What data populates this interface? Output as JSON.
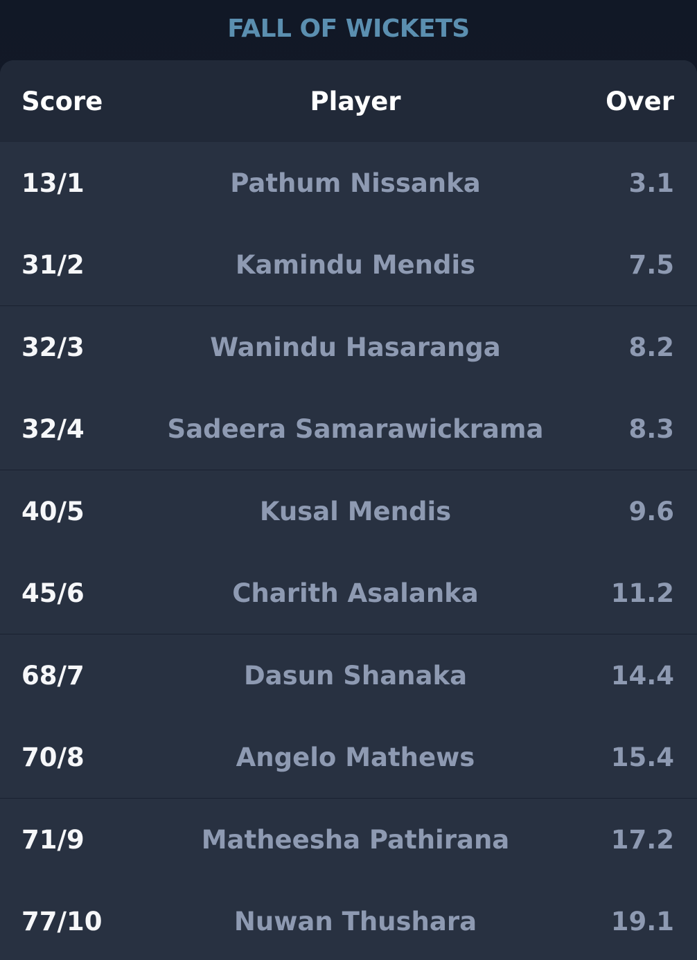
{
  "title": "FALL OF WICKETS",
  "columns": {
    "score": "Score",
    "player": "Player",
    "over": "Over"
  },
  "wickets": [
    {
      "score": "13/1",
      "player": "Pathum Nissanka",
      "over": "3.1"
    },
    {
      "score": "31/2",
      "player": "Kamindu Mendis",
      "over": "7.5"
    },
    {
      "score": "32/3",
      "player": "Wanindu Hasaranga",
      "over": "8.2"
    },
    {
      "score": "32/4",
      "player": "Sadeera Samarawickrama",
      "over": "8.3"
    },
    {
      "score": "40/5",
      "player": "Kusal Mendis",
      "over": "9.6"
    },
    {
      "score": "45/6",
      "player": "Charith Asalanka",
      "over": "11.2"
    },
    {
      "score": "68/7",
      "player": "Dasun Shanaka",
      "over": "14.4"
    },
    {
      "score": "70/8",
      "player": "Angelo Mathews",
      "over": "15.4"
    },
    {
      "score": "71/9",
      "player": "Matheesha Pathirana",
      "over": "17.2"
    },
    {
      "score": "77/10",
      "player": "Nuwan Thushara",
      "over": "19.1"
    }
  ]
}
